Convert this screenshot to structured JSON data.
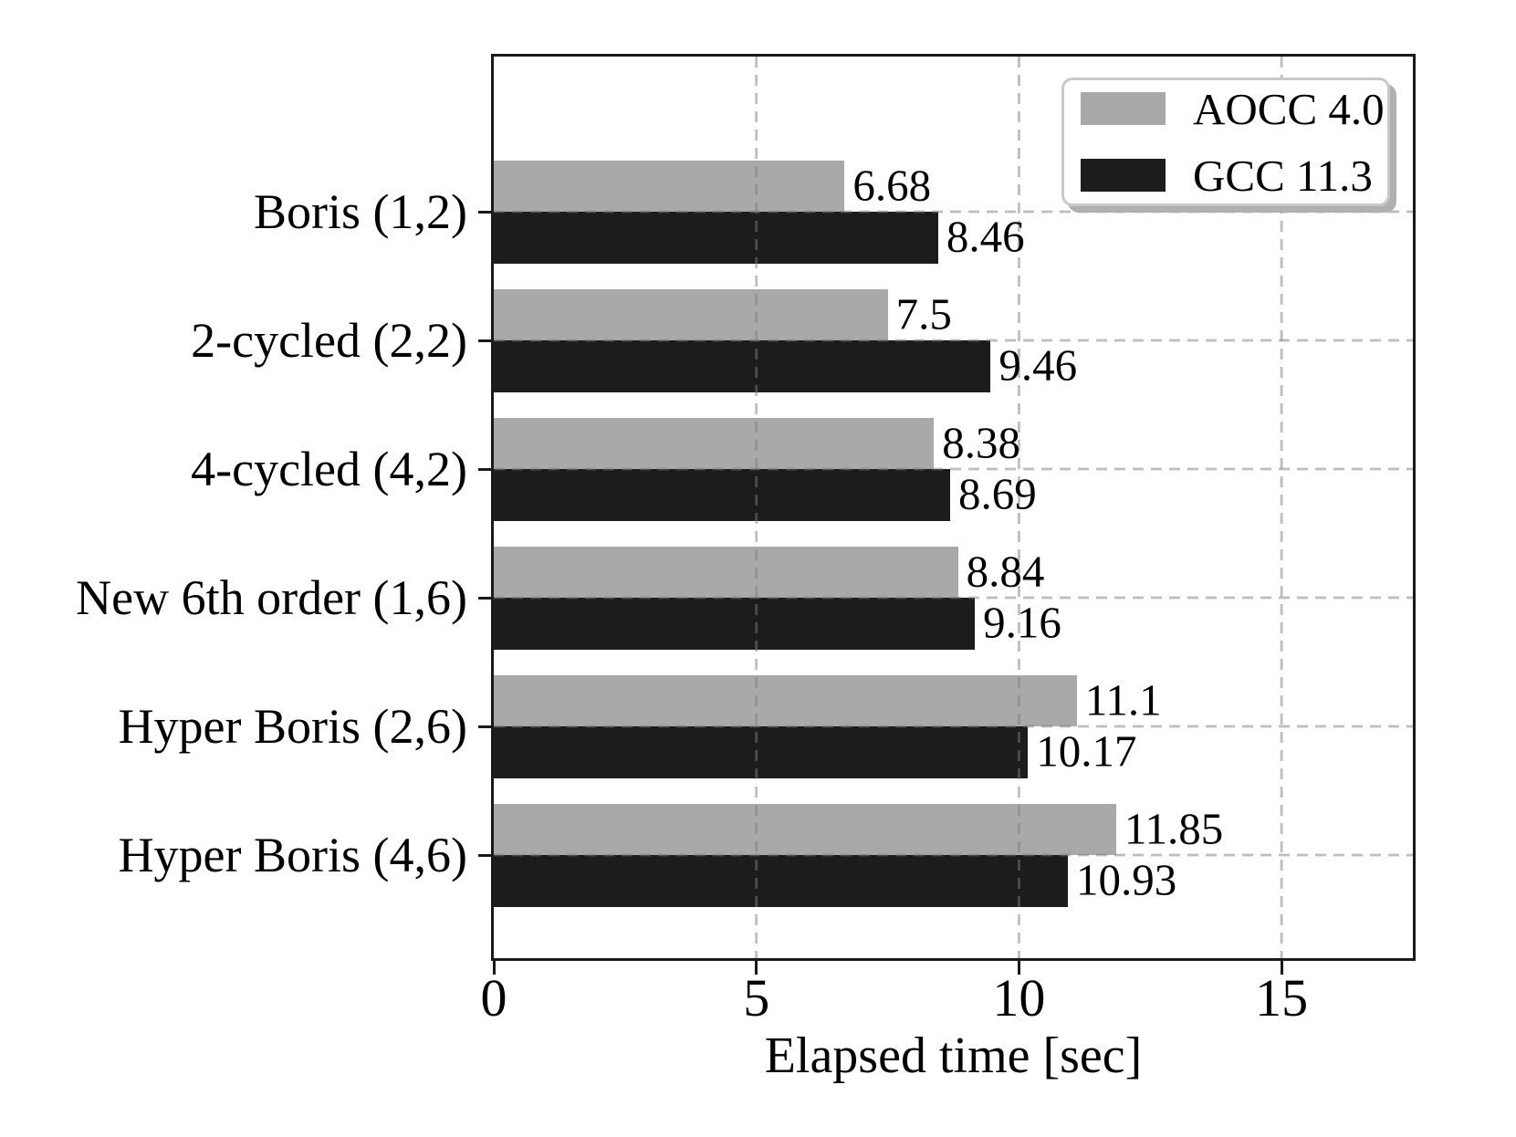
{
  "chart_data": {
    "type": "bar",
    "orientation": "horizontal",
    "title": "",
    "xlabel": "Elapsed time [sec]",
    "ylabel": "",
    "categories": [
      "Boris (1,2)",
      "2-cycled (2,2)",
      "4-cycled (4,2)",
      "New 6th order (1,6)",
      "Hyper Boris (2,6)",
      "Hyper Boris (4,6)"
    ],
    "series": [
      {
        "name": "AOCC 4.0",
        "color": "#a9a9a9",
        "values": [
          6.68,
          7.5,
          8.38,
          8.84,
          11.1,
          11.85
        ],
        "value_labels": [
          "6.68",
          "7.5",
          "8.38",
          "8.84",
          "11.1",
          "11.85"
        ]
      },
      {
        "name": "GCC 11.3",
        "color": "#1c1c1c",
        "values": [
          8.46,
          9.46,
          8.69,
          9.16,
          10.17,
          10.93
        ],
        "value_labels": [
          "8.46",
          "9.46",
          "8.69",
          "9.16",
          "10.17",
          "10.93"
        ]
      }
    ],
    "xlim": [
      0,
      17.5
    ],
    "xticks": [
      0,
      5,
      10,
      15
    ],
    "xtick_labels": [
      "0",
      "5",
      "10",
      "15"
    ],
    "grid": "dashed",
    "grid_over_bars": true,
    "legend_position": "upper right"
  },
  "colors": {
    "background": "#ffffff",
    "text": "#000000",
    "spine": "#1a1a1a",
    "gridline": "rgba(125,125,125,0.5)",
    "bar_gray": "#a9a9a9",
    "bar_black": "#1c1c1c",
    "legend_border": "#c9c9c9",
    "legend_shadow": "#b0b0b0"
  }
}
